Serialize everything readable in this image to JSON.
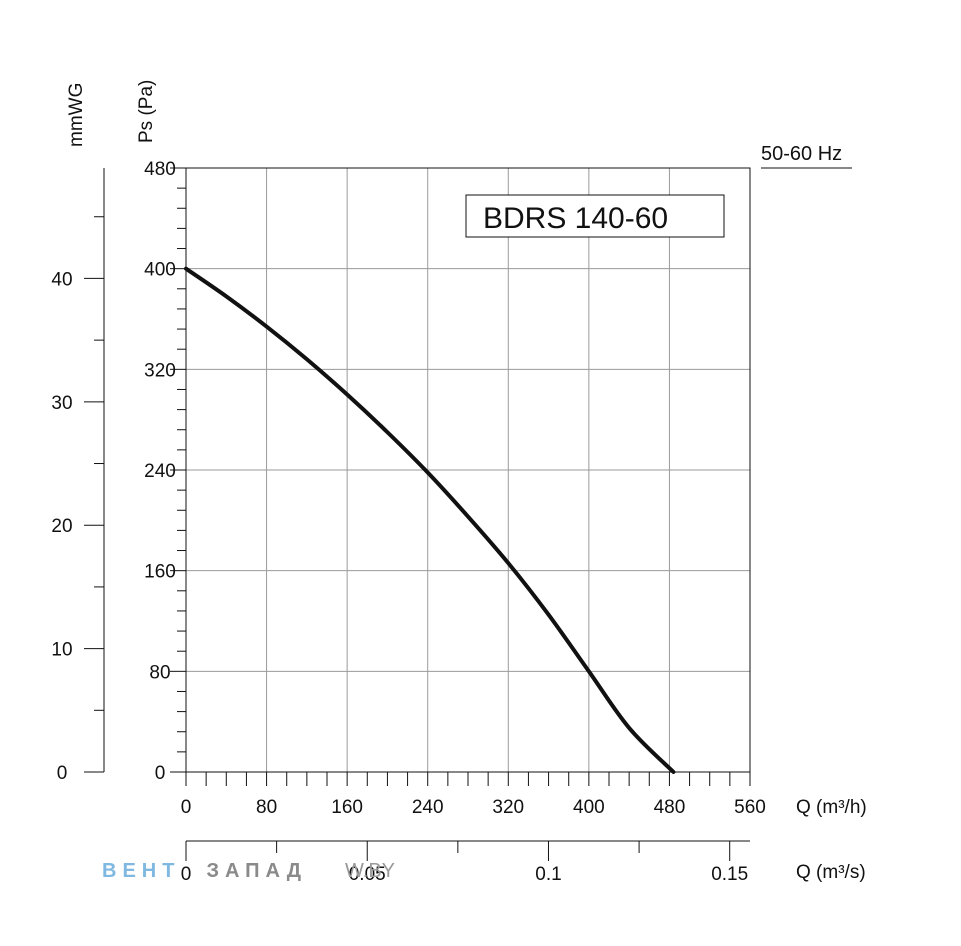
{
  "chart_data": {
    "type": "line",
    "title": "",
    "model_label": "BDRS 140-60",
    "frequency_label": "50-60 Hz",
    "xlabel": "Q (m³/h)",
    "xlabel_secondary": "Q (m³/s)",
    "ylabel": "Ps (Pa)",
    "ylabel_secondary": "mmWG",
    "xlim": [
      0,
      560
    ],
    "ylim": [
      0,
      480
    ],
    "x_ticks": [
      "0",
      "80",
      "160",
      "240",
      "320",
      "400",
      "480",
      "560"
    ],
    "x_tick_values": [
      0,
      80,
      160,
      240,
      320,
      400,
      480,
      560
    ],
    "y_ticks": [
      "0",
      "80",
      "160",
      "240",
      "320",
      "400",
      "480"
    ],
    "y_tick_values": [
      0,
      80,
      160,
      240,
      320,
      400,
      480
    ],
    "x2_ticks": [
      "0",
      "0.05",
      "0.1",
      "0.15"
    ],
    "x2_tick_values": [
      0,
      0.05,
      0.1,
      0.15
    ],
    "x2_lim": [
      0,
      0.1556
    ],
    "y2_ticks": [
      "0",
      "10",
      "20",
      "30",
      "40"
    ],
    "y2_tick_values": [
      0,
      10,
      20,
      30,
      40
    ],
    "y2_lim": [
      0,
      48.95
    ],
    "grid": true,
    "series": [
      {
        "name": "",
        "x": [
          0,
          40,
          80,
          120,
          160,
          200,
          240,
          280,
          320,
          360,
          400,
          440,
          484
        ],
        "y": [
          400,
          378,
          354,
          328,
          300,
          270,
          238,
          203,
          166,
          125,
          80,
          35,
          0
        ]
      }
    ]
  },
  "watermark": {
    "part1": "ВЕНТ",
    "part2": "ЗАПАД",
    "part3": "W.BY",
    "color1": "#7fb8e0",
    "color2": "#8a8a8a"
  }
}
